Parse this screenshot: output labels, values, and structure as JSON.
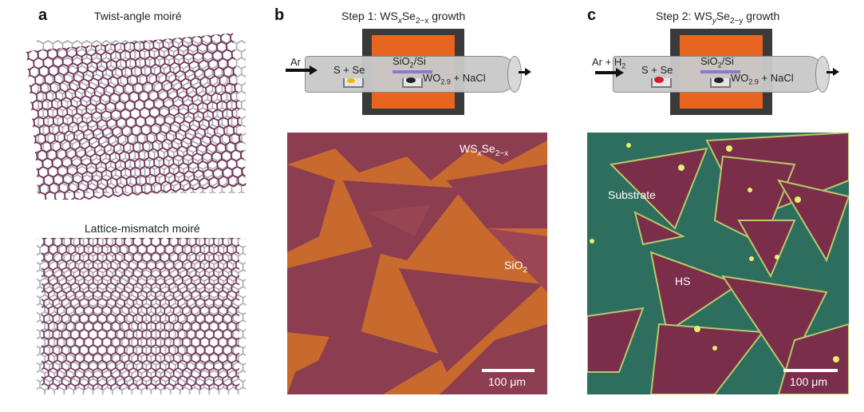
{
  "panel_a": {
    "label": "a",
    "twist_title": "Twist-angle moiré",
    "mismatch_title": "Lattice-mismatch moiré"
  },
  "panel_b": {
    "label": "b",
    "step_title_pre": "Step 1: WS",
    "step_title_x": "x",
    "step_title_se": "Se",
    "step_title_sub": "2−x",
    "step_title_post": " growth",
    "gas": "Ar",
    "precursor": "S + Se",
    "substrate": "SiO",
    "substrate_sub": "2",
    "substrate_post": "/Si",
    "source": "WO",
    "source_sub": "2.9",
    "source_post": " + NaCl",
    "image_label_pre": "WS",
    "image_label_x": "x",
    "image_label_se": "Se",
    "image_label_sub": "2−x",
    "sio2_label": "SiO",
    "sio2_sub": "2",
    "scale": "100 μm"
  },
  "panel_c": {
    "label": "c",
    "step_title_pre": "Step 2: WS",
    "step_title_y": "y",
    "step_title_se": "Se",
    "step_title_sub": "2−y",
    "step_title_post": " growth",
    "gas": "Ar + H",
    "gas_sub": "2",
    "precursor": "S + Se",
    "substrate": "SiO",
    "substrate_sub": "2",
    "substrate_post": "/Si",
    "source": "WO",
    "source_sub": "2.9",
    "source_post": " + NaCl",
    "substrate_label": "Substrate",
    "hs_label": "HS",
    "scale": "100 μm"
  },
  "colors": {
    "lattice_dark": "#6b2d55",
    "lattice_grey": "#a9a9a9",
    "furnace_dark": "#3a3a3a",
    "furnace_orange": "#e8651f",
    "tube": "#c9c9c9",
    "optical_orange": "#c8692e",
    "optical_purple": "#8c3d50",
    "hs_green": "#2d6e5f",
    "hs_purple": "#7a2e4a"
  }
}
